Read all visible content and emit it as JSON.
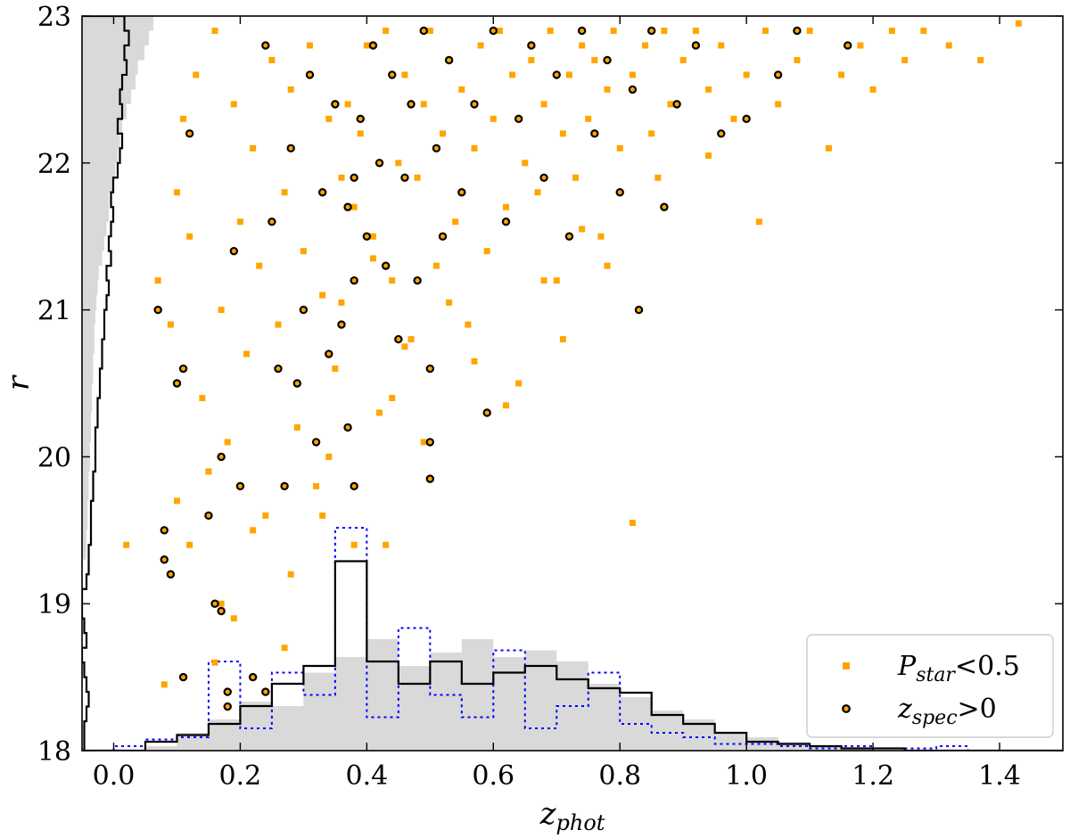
{
  "chart_data": {
    "type": "scatter",
    "title": "",
    "xlabel": "z",
    "xlabel_sub": "phot",
    "ylabel": "r",
    "xlim": [
      -0.05,
      1.5
    ],
    "ylim": [
      18,
      23
    ],
    "xticks": [
      0.0,
      0.2,
      0.4,
      0.6,
      0.8,
      1.0,
      1.2,
      1.4
    ],
    "xtick_labels": [
      "0.0",
      "0.2",
      "0.4",
      "0.6",
      "0.8",
      "1.0",
      "1.2",
      "1.4"
    ],
    "yticks": [
      18,
      19,
      20,
      21,
      22,
      23
    ],
    "ytick_labels": [
      "18",
      "19",
      "20",
      "21",
      "22",
      "23"
    ],
    "grid": false,
    "legend_position": "bottom-right",
    "colors": {
      "orange": "#FFA500",
      "black": "#000000",
      "gray_fill": "#D9D9D9",
      "blue": "#0000FF"
    },
    "legend": [
      {
        "symbol": "square",
        "main": "P",
        "sub": "star",
        "tail": "<0.5"
      },
      {
        "symbol": "circle",
        "main": "z",
        "sub": "spec",
        "tail": ">0"
      }
    ],
    "series": [
      {
        "marker": "square",
        "points": [
          [
            0.07,
            21.2
          ],
          [
            0.09,
            20.9
          ],
          [
            0.1,
            21.8
          ],
          [
            0.11,
            22.3
          ],
          [
            0.12,
            21.5
          ],
          [
            0.13,
            22.6
          ],
          [
            0.14,
            20.4
          ],
          [
            0.15,
            19.9
          ],
          [
            0.1,
            19.7
          ],
          [
            0.16,
            22.9
          ],
          [
            0.17,
            21.0
          ],
          [
            0.18,
            20.1
          ],
          [
            0.19,
            22.4
          ],
          [
            0.2,
            21.6
          ],
          [
            0.21,
            20.7
          ],
          [
            0.22,
            22.1
          ],
          [
            0.23,
            21.3
          ],
          [
            0.24,
            19.6
          ],
          [
            0.25,
            22.7
          ],
          [
            0.26,
            20.9
          ],
          [
            0.27,
            21.8
          ],
          [
            0.28,
            22.5
          ],
          [
            0.29,
            20.2
          ],
          [
            0.3,
            21.4
          ],
          [
            0.31,
            22.8
          ],
          [
            0.32,
            19.8
          ],
          [
            0.33,
            21.1
          ],
          [
            0.34,
            22.3
          ],
          [
            0.35,
            20.6
          ],
          [
            0.36,
            21.9
          ],
          [
            0.37,
            22.4
          ],
          [
            0.38,
            21.7
          ],
          [
            0.39,
            22.2
          ],
          [
            0.4,
            22.8
          ],
          [
            0.41,
            21.5
          ],
          [
            0.42,
            20.3
          ],
          [
            0.43,
            22.9
          ],
          [
            0.44,
            21.2
          ],
          [
            0.45,
            22.0
          ],
          [
            0.46,
            22.6
          ],
          [
            0.47,
            20.8
          ],
          [
            0.48,
            21.9
          ],
          [
            0.49,
            22.4
          ],
          [
            0.5,
            22.9
          ],
          [
            0.51,
            21.3
          ],
          [
            0.52,
            22.2
          ],
          [
            0.53,
            22.7
          ],
          [
            0.54,
            21.6
          ],
          [
            0.55,
            22.5
          ],
          [
            0.56,
            20.9
          ],
          [
            0.57,
            22.1
          ],
          [
            0.58,
            22.8
          ],
          [
            0.59,
            21.4
          ],
          [
            0.6,
            22.3
          ],
          [
            0.61,
            22.9
          ],
          [
            0.62,
            21.7
          ],
          [
            0.63,
            22.6
          ],
          [
            0.64,
            20.5
          ],
          [
            0.65,
            22.0
          ],
          [
            0.66,
            22.7
          ],
          [
            0.67,
            21.8
          ],
          [
            0.68,
            22.4
          ],
          [
            0.69,
            22.9
          ],
          [
            0.7,
            21.2
          ],
          [
            0.71,
            22.2
          ],
          [
            0.72,
            22.6
          ],
          [
            0.73,
            21.9
          ],
          [
            0.74,
            22.8
          ],
          [
            0.75,
            22.3
          ],
          [
            0.76,
            22.7
          ],
          [
            0.77,
            21.5
          ],
          [
            0.78,
            22.5
          ],
          [
            0.79,
            22.9
          ],
          [
            0.8,
            22.1
          ],
          [
            0.82,
            22.6
          ],
          [
            0.84,
            22.8
          ],
          [
            0.85,
            22.2
          ],
          [
            0.87,
            22.9
          ],
          [
            0.88,
            22.4
          ],
          [
            0.9,
            22.7
          ],
          [
            0.92,
            22.9
          ],
          [
            0.94,
            22.5
          ],
          [
            0.96,
            22.8
          ],
          [
            0.98,
            22.3
          ],
          [
            1.0,
            22.6
          ],
          [
            1.02,
            21.6
          ],
          [
            1.03,
            22.9
          ],
          [
            1.05,
            22.4
          ],
          [
            1.08,
            22.7
          ],
          [
            1.1,
            22.9
          ],
          [
            1.13,
            22.1
          ],
          [
            1.15,
            22.6
          ],
          [
            1.18,
            22.8
          ],
          [
            1.2,
            22.5
          ],
          [
            1.23,
            22.9
          ],
          [
            1.25,
            22.7
          ],
          [
            1.28,
            22.9
          ],
          [
            1.32,
            22.8
          ],
          [
            1.37,
            22.7
          ],
          [
            1.43,
            22.95
          ],
          [
            0.82,
            19.55
          ],
          [
            0.71,
            20.8
          ],
          [
            0.62,
            20.35
          ],
          [
            0.78,
            21.3
          ],
          [
            0.12,
            19.4
          ],
          [
            0.17,
            19.0
          ],
          [
            0.22,
            19.5
          ],
          [
            0.28,
            19.2
          ],
          [
            0.33,
            19.6
          ],
          [
            0.38,
            19.4
          ],
          [
            0.43,
            19.4
          ],
          [
            0.02,
            19.4
          ],
          [
            0.19,
            18.9
          ],
          [
            0.27,
            18.7
          ],
          [
            0.16,
            18.6
          ],
          [
            0.08,
            18.45
          ],
          [
            0.34,
            20.0
          ],
          [
            0.44,
            20.4
          ],
          [
            0.49,
            20.1
          ],
          [
            0.36,
            21.05
          ],
          [
            0.41,
            21.35
          ],
          [
            0.46,
            20.75
          ],
          [
            0.53,
            21.05
          ],
          [
            0.57,
            20.65
          ],
          [
            0.68,
            21.2
          ],
          [
            0.74,
            21.55
          ],
          [
            0.86,
            21.9
          ],
          [
            0.94,
            22.05
          ]
        ]
      },
      {
        "marker": "circle",
        "points": [
          [
            0.07,
            21.0
          ],
          [
            0.08,
            19.5
          ],
          [
            0.09,
            19.2
          ],
          [
            0.1,
            20.5
          ],
          [
            0.11,
            18.5
          ],
          [
            0.12,
            22.2
          ],
          [
            0.15,
            19.6
          ],
          [
            0.16,
            19.0
          ],
          [
            0.17,
            20.0
          ],
          [
            0.18,
            18.4
          ],
          [
            0.19,
            21.4
          ],
          [
            0.2,
            19.8
          ],
          [
            0.22,
            18.5
          ],
          [
            0.24,
            22.8
          ],
          [
            0.25,
            21.6
          ],
          [
            0.26,
            20.6
          ],
          [
            0.27,
            19.8
          ],
          [
            0.28,
            22.1
          ],
          [
            0.29,
            20.5
          ],
          [
            0.3,
            21.0
          ],
          [
            0.31,
            22.6
          ],
          [
            0.32,
            20.1
          ],
          [
            0.33,
            21.8
          ],
          [
            0.34,
            20.7
          ],
          [
            0.35,
            22.4
          ],
          [
            0.36,
            20.9
          ],
          [
            0.37,
            21.7
          ],
          [
            0.38,
            21.9
          ],
          [
            0.38,
            21.2
          ],
          [
            0.37,
            20.2
          ],
          [
            0.38,
            19.8
          ],
          [
            0.39,
            22.3
          ],
          [
            0.4,
            21.5
          ],
          [
            0.41,
            22.8
          ],
          [
            0.42,
            22.0
          ],
          [
            0.43,
            21.3
          ],
          [
            0.44,
            22.6
          ],
          [
            0.45,
            20.8
          ],
          [
            0.46,
            21.9
          ],
          [
            0.47,
            22.4
          ],
          [
            0.48,
            21.2
          ],
          [
            0.49,
            22.9
          ],
          [
            0.5,
            20.6
          ],
          [
            0.51,
            22.1
          ],
          [
            0.52,
            21.5
          ],
          [
            0.53,
            22.7
          ],
          [
            0.55,
            21.8
          ],
          [
            0.57,
            22.4
          ],
          [
            0.59,
            20.3
          ],
          [
            0.6,
            22.9
          ],
          [
            0.62,
            21.6
          ],
          [
            0.64,
            22.3
          ],
          [
            0.66,
            22.8
          ],
          [
            0.68,
            21.9
          ],
          [
            0.7,
            22.6
          ],
          [
            0.72,
            21.5
          ],
          [
            0.74,
            22.9
          ],
          [
            0.76,
            22.2
          ],
          [
            0.78,
            22.7
          ],
          [
            0.8,
            21.8
          ],
          [
            0.82,
            22.5
          ],
          [
            0.83,
            21.0
          ],
          [
            0.85,
            22.9
          ],
          [
            0.87,
            21.7
          ],
          [
            0.89,
            22.4
          ],
          [
            0.92,
            22.8
          ],
          [
            0.96,
            22.2
          ],
          [
            1.0,
            22.3
          ],
          [
            1.05,
            22.6
          ],
          [
            1.08,
            22.9
          ],
          [
            1.16,
            22.8
          ],
          [
            0.18,
            18.3
          ],
          [
            0.24,
            18.4
          ],
          [
            0.17,
            18.95
          ],
          [
            0.11,
            20.6
          ],
          [
            0.08,
            19.3
          ],
          [
            0.5,
            19.85
          ],
          [
            0.5,
            20.1
          ]
        ]
      }
    ],
    "hist_r_gray": {
      "bins": [
        18.0,
        18.1,
        18.2,
        18.3,
        18.4,
        18.5,
        18.6,
        18.7,
        18.8,
        18.9,
        19.0,
        19.1,
        19.2,
        19.3,
        19.4,
        19.5,
        19.6,
        19.7,
        19.8,
        19.9,
        20.0,
        20.1,
        20.2,
        20.3,
        20.4,
        20.5,
        20.6,
        20.7,
        20.8,
        20.9,
        21.0,
        21.1,
        21.2,
        21.3,
        21.4,
        21.5,
        21.6,
        21.7,
        21.8,
        21.9,
        22.0,
        22.1,
        22.2,
        22.3,
        22.4,
        22.5,
        22.6,
        22.7,
        22.8,
        22.9,
        23.0
      ],
      "values": [
        0,
        0,
        0,
        0,
        0,
        0,
        0,
        0,
        0,
        0,
        0,
        0.0,
        0.0,
        0.02,
        0.02,
        0.025,
        0.025,
        0.03,
        0.03,
        0.035,
        0.035,
        0.04,
        0.04,
        0.045,
        0.045,
        0.05,
        0.05,
        0.055,
        0.055,
        0.06,
        0.065,
        0.07,
        0.075,
        0.09,
        0.1,
        0.11,
        0.12,
        0.12,
        0.14,
        0.15,
        0.16,
        0.17,
        0.18,
        0.2,
        0.22,
        0.24,
        0.25,
        0.28,
        0.3,
        0.32
      ]
    },
    "hist_r_black": {
      "bins": [
        18.0,
        18.1,
        18.2,
        18.3,
        18.4,
        18.5,
        18.6,
        18.7,
        18.8,
        18.9,
        19.0,
        19.1,
        19.2,
        19.3,
        19.4,
        19.5,
        19.6,
        19.7,
        19.8,
        19.9,
        20.0,
        20.1,
        20.2,
        20.3,
        20.4,
        20.5,
        20.6,
        20.7,
        20.8,
        20.9,
        21.0,
        21.1,
        21.2,
        21.3,
        21.4,
        21.5,
        21.6,
        21.7,
        21.8,
        21.9,
        22.0,
        22.1,
        22.2,
        22.3,
        22.4,
        22.5,
        22.6,
        22.7,
        22.8,
        22.9,
        23.0
      ],
      "values": [
        0.01,
        0.01,
        0.02,
        0.03,
        0.02,
        0.01,
        0.0,
        0.02,
        0.01,
        0.0,
        0.0,
        0.02,
        0.03,
        0.03,
        0.04,
        0.04,
        0.04,
        0.05,
        0.05,
        0.06,
        0.06,
        0.06,
        0.07,
        0.07,
        0.08,
        0.08,
        0.09,
        0.09,
        0.1,
        0.1,
        0.11,
        0.12,
        0.11,
        0.13,
        0.12,
        0.13,
        0.14,
        0.13,
        0.14,
        0.16,
        0.17,
        0.18,
        0.16,
        0.18,
        0.17,
        0.18,
        0.2,
        0.19,
        0.21,
        0.19
      ]
    },
    "hist_z_gray": {
      "bins": [
        -0.05,
        0.0,
        0.05,
        0.1,
        0.15,
        0.2,
        0.25,
        0.3,
        0.35,
        0.4,
        0.45,
        0.5,
        0.55,
        0.6,
        0.65,
        0.7,
        0.75,
        0.8,
        0.85,
        0.9,
        0.95,
        1.0,
        1.05,
        1.1,
        1.15,
        1.2,
        1.25,
        1.3,
        1.35,
        1.4,
        1.45,
        1.5
      ],
      "values": [
        0,
        0,
        0.02,
        0.08,
        0.14,
        0.22,
        0.2,
        0.35,
        0.42,
        0.5,
        0.38,
        0.44,
        0.5,
        0.42,
        0.45,
        0.4,
        0.3,
        0.24,
        0.18,
        0.14,
        0.08,
        0.06,
        0.04,
        0.02,
        0.01,
        0,
        0,
        0,
        0,
        0,
        0
      ]
    },
    "hist_z_black": {
      "bins": [
        -0.05,
        0.0,
        0.05,
        0.1,
        0.15,
        0.2,
        0.25,
        0.3,
        0.35,
        0.4,
        0.45,
        0.5,
        0.55,
        0.6,
        0.65,
        0.7,
        0.75,
        0.8,
        0.85,
        0.9,
        0.95,
        1.0,
        1.05,
        1.1,
        1.15,
        1.2,
        1.25,
        1.3,
        1.35,
        1.4,
        1.45,
        1.5
      ],
      "values": [
        0,
        0,
        0.04,
        0.07,
        0.12,
        0.2,
        0.3,
        0.38,
        0.85,
        0.4,
        0.3,
        0.4,
        0.3,
        0.35,
        0.38,
        0.32,
        0.28,
        0.26,
        0.16,
        0.12,
        0.08,
        0.04,
        0.03,
        0.02,
        0.01,
        0.01,
        0,
        0,
        0,
        0,
        0
      ]
    },
    "hist_z_blue": {
      "bins": [
        -0.05,
        0.0,
        0.05,
        0.1,
        0.15,
        0.2,
        0.25,
        0.3,
        0.35,
        0.4,
        0.45,
        0.5,
        0.55,
        0.6,
        0.65,
        0.7,
        0.75,
        0.8,
        0.85,
        0.9,
        0.95,
        1.0,
        1.05,
        1.1,
        1.15,
        1.2,
        1.25,
        1.3,
        1.35,
        1.4,
        1.45,
        1.5
      ],
      "values": [
        0,
        0.02,
        0.05,
        0.06,
        0.4,
        0.1,
        0.35,
        0.25,
        1.0,
        0.15,
        0.55,
        0.25,
        0.15,
        0.45,
        0.1,
        0.2,
        0.35,
        0.12,
        0.08,
        0.06,
        0.03,
        0.03,
        0.02,
        0.01,
        0.02,
        0.01,
        0.01,
        0.02,
        0,
        0,
        0
      ]
    }
  }
}
